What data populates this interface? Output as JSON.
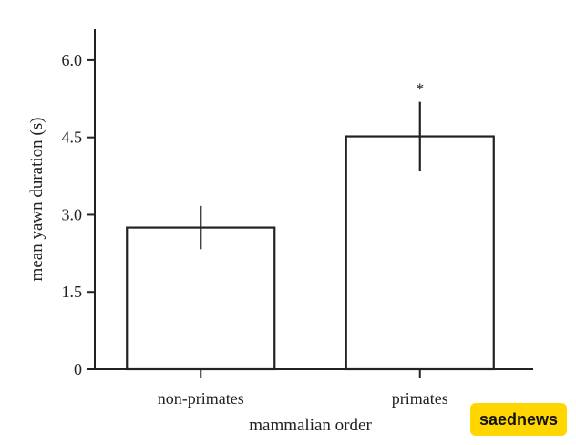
{
  "chart_data": {
    "type": "bar",
    "categories": [
      "non-primates",
      "primates"
    ],
    "values": [
      2.75,
      4.52
    ],
    "error_low": [
      2.33,
      3.85
    ],
    "error_high": [
      3.17,
      5.19
    ],
    "annotations": [
      "",
      "*"
    ],
    "title": "",
    "xlabel": "mammalian order",
    "ylabel": "mean yawn duration (s)",
    "ylim": [
      0,
      6.6
    ],
    "yticks": [
      "0",
      "1.5",
      "3.0",
      "4.5",
      "6.0"
    ],
    "ytick_values": [
      0,
      1.5,
      3.0,
      4.5,
      6.0
    ],
    "grid": false,
    "legend": "none",
    "bar_fill": "#ffffff",
    "bar_stroke": "#222222"
  },
  "watermark": {
    "text": "saednews",
    "background": "#ffd600"
  }
}
